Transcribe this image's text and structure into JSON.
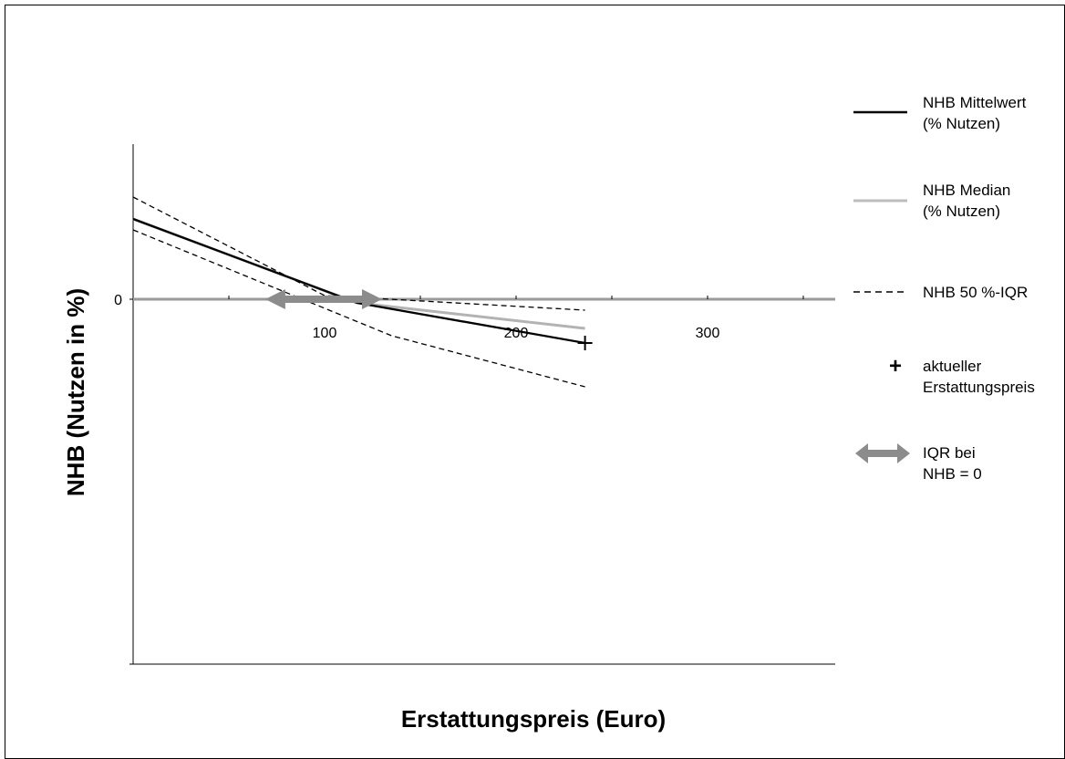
{
  "chart_data": {
    "type": "line",
    "xlabel": "Erstattungspreis (Euro)",
    "ylabel": "NHB (Nutzen in %)",
    "x_ticks": [
      100,
      200,
      300
    ],
    "y_ticks": [
      0
    ],
    "xlim": [
      0,
      340
    ],
    "grid": false,
    "legend_position": "right",
    "series": [
      {
        "name": "NHB Mittelwert (% Nutzen)",
        "style": "solid",
        "color": "#000000",
        "x": [
          0,
          117,
          236
        ],
        "y": [
          0.22,
          -0.01,
          -0.12
        ]
      },
      {
        "name": "NHB Median (% Nutzen)",
        "style": "solid",
        "color": "#b3b3b3",
        "x": [
          0,
          117,
          236
        ],
        "y": [
          0.22,
          -0.01,
          -0.08
        ]
      },
      {
        "name": "NHB 50 %-IQR",
        "style": "dashed",
        "color": "#000000",
        "x": [
          0,
          100,
          236
        ],
        "y": [
          0.28,
          0.01,
          -0.03
        ]
      },
      {
        "name": "NHB 50 %-IQR",
        "style": "dashed",
        "color": "#000000",
        "x": [
          0,
          135,
          236
        ],
        "y": [
          0.19,
          -0.1,
          -0.24
        ]
      }
    ],
    "current_price": {
      "x": 236,
      "y": -0.12
    },
    "iqr_at_zero": {
      "x_start": 69,
      "x_end": 130,
      "y": 0,
      "color": "#8c8c8c"
    }
  },
  "legend": {
    "mean": {
      "line1": "NHB Mittelwert",
      "line2": "(% Nutzen)"
    },
    "median": {
      "line1": "NHB Median",
      "line2": "(% Nutzen)"
    },
    "iqr": {
      "line1": "NHB 50 %-IQR"
    },
    "price": {
      "symbol": "+",
      "line1": "aktueller",
      "line2": "Erstattungspreis"
    },
    "arrow": {
      "line1": "IQR bei",
      "line2": "NHB = 0"
    }
  }
}
